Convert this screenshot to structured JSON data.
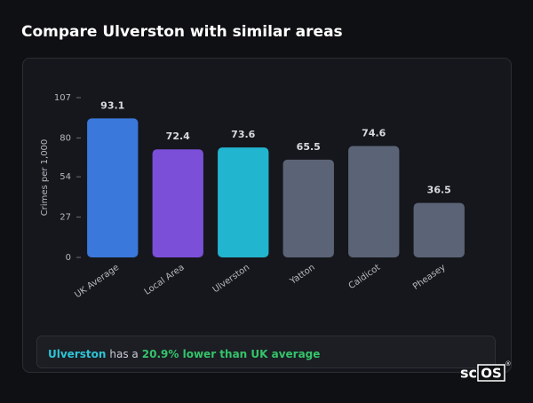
{
  "header": {
    "title": "Compare Ulverston with similar areas"
  },
  "chart_data": {
    "type": "bar",
    "categories": [
      "UK Average",
      "Local Area",
      "Ulverston",
      "Yatton",
      "Caldicot",
      "Pheasey"
    ],
    "values": [
      93.1,
      72.4,
      73.6,
      65.5,
      74.6,
      36.5
    ],
    "colors": [
      "#3a78dc",
      "#7b4fd8",
      "#22b5cf",
      "#5b6476",
      "#5b6476",
      "#5b6476"
    ],
    "y_label": "Crimes per 1,000",
    "ylim": [
      0,
      107
    ],
    "yticks": [
      0,
      27,
      54,
      80,
      107
    ],
    "grid": false
  },
  "footer": {
    "place": "Ulverston",
    "middle": "has a",
    "highlight": "20.9% lower than UK average"
  },
  "logo": {
    "prefix": "sc",
    "mark": "OS",
    "symbol": "®"
  }
}
